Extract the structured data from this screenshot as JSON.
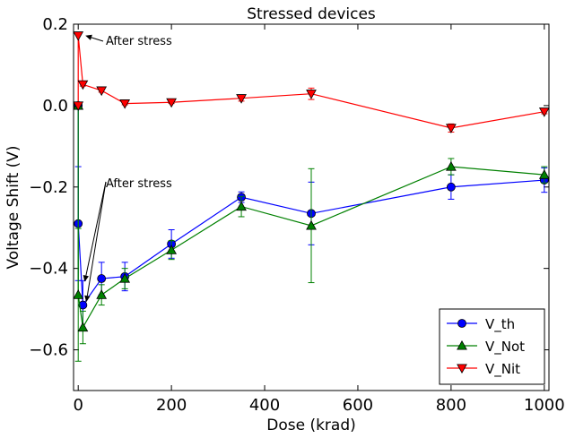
{
  "chart_data": {
    "type": "line",
    "title": "Stressed devices",
    "xlabel": "Dose (krad)",
    "ylabel": "Voltage Shift (V)",
    "xlim": [
      -10,
      1010
    ],
    "ylim": [
      -0.7,
      0.2
    ],
    "xticks": [
      0,
      200,
      400,
      600,
      800,
      1000
    ],
    "yticks": [
      -0.6,
      -0.4,
      -0.2,
      0.0,
      0.2
    ],
    "ytick_labels": [
      "−0.6",
      "−0.4",
      "−0.2",
      "0.0",
      "0.2"
    ],
    "legend_position": "bottom-right",
    "grid": false,
    "series": [
      {
        "name": "V_th",
        "color": "#0000ff",
        "marker": "circle",
        "x": [
          0,
          0,
          10,
          50,
          100,
          200,
          350,
          500,
          800,
          1000
        ],
        "y": [
          0.0,
          -0.29,
          -0.49,
          -0.425,
          -0.42,
          -0.34,
          -0.225,
          -0.265,
          -0.2,
          -0.183
        ],
        "err": [
          0.0,
          0.14,
          0.06,
          0.04,
          0.035,
          0.035,
          0.013,
          0.077,
          0.03,
          0.03
        ]
      },
      {
        "name": "V_Not",
        "color": "#008000",
        "marker": "triangle-up",
        "x": [
          0,
          0,
          10,
          50,
          100,
          200,
          350,
          500,
          800,
          1000
        ],
        "y": [
          0.0,
          -0.465,
          -0.545,
          -0.465,
          -0.425,
          -0.355,
          -0.248,
          -0.295,
          -0.15,
          -0.17
        ],
        "err": [
          0.0,
          0.163,
          0.04,
          0.025,
          0.025,
          0.023,
          0.025,
          0.14,
          0.02,
          0.02
        ]
      },
      {
        "name": "V_Nit",
        "color": "#ff0000",
        "marker": "triangle-down",
        "x": [
          0,
          0,
          10,
          50,
          100,
          200,
          350,
          500,
          800,
          1000
        ],
        "y": [
          0.0,
          0.172,
          0.052,
          0.037,
          0.005,
          0.008,
          0.018,
          0.029,
          -0.055,
          -0.015
        ],
        "err": [
          0.0,
          0.0,
          0.004,
          0.004,
          0.003,
          0.003,
          0.007,
          0.014,
          0.01,
          0.005
        ]
      }
    ],
    "annotations": [
      {
        "text": "After stress",
        "target_series": "V_Nit"
      },
      {
        "text": "After stress",
        "target_series": "V_th,V_Not"
      }
    ]
  }
}
